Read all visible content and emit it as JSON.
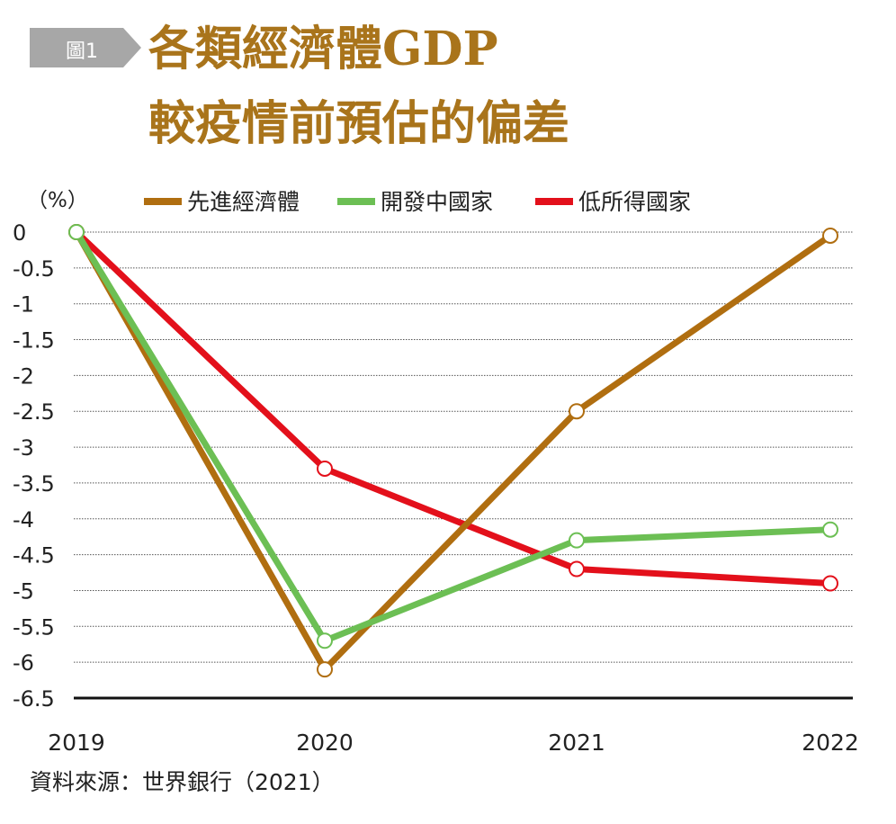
{
  "badge": {
    "label": "圖1"
  },
  "title": {
    "line1": "各類經濟體GDP",
    "line2": "較疫情前預估的偏差"
  },
  "unit_label": "（%）",
  "source": "資料來源：世界銀行（2021）",
  "colors": {
    "advanced": "#b06e10",
    "developing": "#6cbf54",
    "low_income": "#e3101b",
    "title": "#a9741b",
    "badge": "#a7a7a7"
  },
  "chart_data": {
    "type": "line",
    "title": "各類經濟體GDP較疫情前預估的偏差",
    "ylabel": "（%）",
    "xlabel": "",
    "categories": [
      "2019",
      "2020",
      "2021",
      "2022"
    ],
    "ylim": [
      -6.5,
      0
    ],
    "yticks": [
      0,
      -0.5,
      -1,
      -1.5,
      -2,
      -2.5,
      -3,
      -3.5,
      -4,
      -4.5,
      -5,
      -5.5,
      -6,
      -6.5
    ],
    "ytick_labels": [
      "0",
      "-0.5",
      "-1",
      "-1.5",
      "-2",
      "-2.5",
      "-3",
      "-3.5",
      "-4",
      "-4.5",
      "-5",
      "-5.5",
      "-6",
      "-6.5"
    ],
    "grid": true,
    "legend_position": "top",
    "series": [
      {
        "name": "先進經濟體",
        "key": "advanced",
        "values": [
          0,
          -6.1,
          -2.5,
          -0.05
        ]
      },
      {
        "name": "開發中國家",
        "key": "developing",
        "values": [
          0,
          -5.7,
          -4.3,
          -4.15
        ]
      },
      {
        "name": "低所得國家",
        "key": "low_income",
        "values": [
          0,
          -3.3,
          -4.7,
          -4.9
        ]
      }
    ]
  }
}
